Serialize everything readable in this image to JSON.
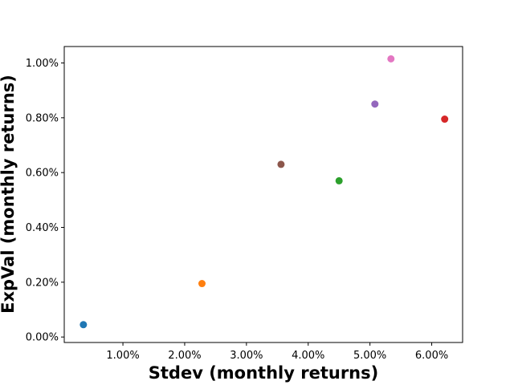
{
  "chart_data": {
    "type": "scatter",
    "title": "",
    "xlabel": "Stdev (monthly returns)",
    "ylabel": "ExpVal (monthly returns)",
    "xlim": [
      0.0005,
      0.065
    ],
    "ylim": [
      -0.0002,
      0.0106
    ],
    "x_ticks": [
      0.01,
      0.02,
      0.03,
      0.04,
      0.05,
      0.06
    ],
    "x_tick_labels": [
      "1.00%",
      "2.00%",
      "3.00%",
      "4.00%",
      "5.00%",
      "6.00%"
    ],
    "y_ticks": [
      0.0,
      0.002,
      0.004,
      0.006,
      0.008,
      0.01
    ],
    "y_tick_labels": [
      "0.00%",
      "0.20%",
      "0.40%",
      "0.60%",
      "0.80%",
      "1.00%"
    ],
    "grid": false,
    "legend": "none",
    "points": [
      {
        "x": 0.0036,
        "y": 0.00045,
        "color": "#1f77b4"
      },
      {
        "x": 0.0228,
        "y": 0.00195,
        "color": "#ff7f0e"
      },
      {
        "x": 0.045,
        "y": 0.0057,
        "color": "#2ca02c"
      },
      {
        "x": 0.0621,
        "y": 0.00795,
        "color": "#d62728"
      },
      {
        "x": 0.0508,
        "y": 0.0085,
        "color": "#9467bd"
      },
      {
        "x": 0.0356,
        "y": 0.0063,
        "color": "#8c564b"
      },
      {
        "x": 0.0534,
        "y": 0.01015,
        "color": "#e377c2"
      }
    ]
  }
}
